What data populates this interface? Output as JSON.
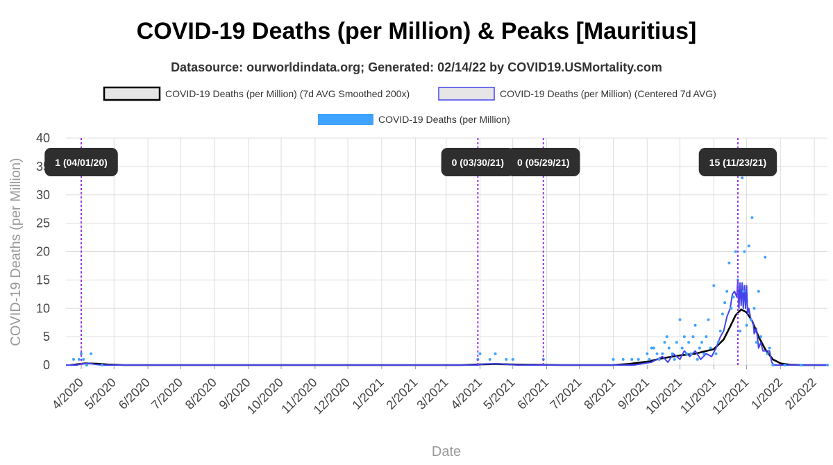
{
  "chart_data": {
    "type": "line",
    "title": "COVID-19 Deaths (per Million) & Peaks [Mauritius]",
    "subtitle": "Datasource: ourworldindata.org; Generated: 02/14/22 by COVID19.USMortality.com",
    "xlabel": "Date",
    "ylabel": "COVID-19 Deaths (per Million)",
    "ylim": [
      0,
      40
    ],
    "yticks": [
      0,
      5,
      10,
      15,
      20,
      25,
      30,
      35,
      40
    ],
    "xlim": [
      "2020-03-18",
      "2022-02-13"
    ],
    "xticks": [
      {
        "date": "2020-04-01",
        "label": "4/2020"
      },
      {
        "date": "2020-05-01",
        "label": "5/2020"
      },
      {
        "date": "2020-06-01",
        "label": "6/2020"
      },
      {
        "date": "2020-07-01",
        "label": "7/2020"
      },
      {
        "date": "2020-08-01",
        "label": "8/2020"
      },
      {
        "date": "2020-09-01",
        "label": "9/2020"
      },
      {
        "date": "2020-10-01",
        "label": "10/2020"
      },
      {
        "date": "2020-11-01",
        "label": "11/2020"
      },
      {
        "date": "2020-12-01",
        "label": "12/2020"
      },
      {
        "date": "2021-01-01",
        "label": "1/2021"
      },
      {
        "date": "2021-02-01",
        "label": "2/2021"
      },
      {
        "date": "2021-03-01",
        "label": "3/2021"
      },
      {
        "date": "2021-04-01",
        "label": "4/2021"
      },
      {
        "date": "2021-05-01",
        "label": "5/2021"
      },
      {
        "date": "2021-06-01",
        "label": "6/2021"
      },
      {
        "date": "2021-07-01",
        "label": "7/2021"
      },
      {
        "date": "2021-08-01",
        "label": "8/2021"
      },
      {
        "date": "2021-09-01",
        "label": "9/2021"
      },
      {
        "date": "2021-10-01",
        "label": "10/2021"
      },
      {
        "date": "2021-11-01",
        "label": "11/2021"
      },
      {
        "date": "2021-12-01",
        "label": "12/2021"
      },
      {
        "date": "2022-01-01",
        "label": "1/2022"
      },
      {
        "date": "2022-02-01",
        "label": "2/2022"
      }
    ],
    "grid": true,
    "legend_position": "top-center",
    "colors": {
      "smoothed": "#000000",
      "centered": "#4444ee",
      "daily": "#3fa3ff",
      "peak_line": "#9933ee",
      "peak_box": "#2e2e2e",
      "grid": "#dddddd"
    },
    "series": [
      {
        "name": "COVID-19 Deaths (per Million) (7d AVG Smoothed 200x)",
        "kind": "smoothed",
        "points": [
          [
            "2020-03-22",
            0
          ],
          [
            "2020-03-29",
            0.15
          ],
          [
            "2020-04-05",
            0.3
          ],
          [
            "2020-04-15",
            0.25
          ],
          [
            "2020-04-25",
            0.1
          ],
          [
            "2020-05-10",
            0
          ],
          [
            "2021-03-15",
            0
          ],
          [
            "2021-03-30",
            0.1
          ],
          [
            "2021-04-15",
            0.2
          ],
          [
            "2021-05-01",
            0.1
          ],
          [
            "2021-05-20",
            0.05
          ],
          [
            "2021-06-15",
            0
          ],
          [
            "2021-08-01",
            0
          ],
          [
            "2021-08-15",
            0.2
          ],
          [
            "2021-09-01",
            0.6
          ],
          [
            "2021-09-15",
            1.2
          ],
          [
            "2021-10-01",
            1.7
          ],
          [
            "2021-10-15",
            2.0
          ],
          [
            "2021-11-01",
            2.8
          ],
          [
            "2021-11-10",
            4.5
          ],
          [
            "2021-11-16",
            6.8
          ],
          [
            "2021-11-21",
            8.8
          ],
          [
            "2021-11-26",
            9.8
          ],
          [
            "2021-12-01",
            9.3
          ],
          [
            "2021-12-06",
            7.8
          ],
          [
            "2021-12-12",
            5.0
          ],
          [
            "2021-12-18",
            2.8
          ],
          [
            "2021-12-25",
            1.0
          ],
          [
            "2022-01-01",
            0.3
          ],
          [
            "2022-01-10",
            0.05
          ],
          [
            "2022-01-20",
            0
          ],
          [
            "2022-02-13",
            0
          ]
        ]
      },
      {
        "name": "COVID-19 Deaths (per Million) (Centered 7d AVG)",
        "kind": "centered",
        "points": [
          [
            "2020-03-18",
            0
          ],
          [
            "2020-03-28",
            0
          ],
          [
            "2020-04-01",
            0.2
          ],
          [
            "2020-04-08",
            0.3
          ],
          [
            "2020-04-15",
            0.1
          ],
          [
            "2020-04-20",
            0
          ],
          [
            "2021-03-30",
            0
          ],
          [
            "2021-04-05",
            0.2
          ],
          [
            "2021-04-20",
            0.2
          ],
          [
            "2021-05-05",
            0
          ],
          [
            "2021-08-20",
            0
          ],
          [
            "2021-09-05",
            0.5
          ],
          [
            "2021-09-15",
            1.5
          ],
          [
            "2021-09-20",
            0.5
          ],
          [
            "2021-09-25",
            2.0
          ],
          [
            "2021-10-01",
            1.0
          ],
          [
            "2021-10-05",
            2.5
          ],
          [
            "2021-10-10",
            1.5
          ],
          [
            "2021-10-15",
            2.5
          ],
          [
            "2021-10-20",
            1.0
          ],
          [
            "2021-10-25",
            2.0
          ],
          [
            "2021-10-30",
            1.5
          ],
          [
            "2021-11-03",
            3.0
          ],
          [
            "2021-11-07",
            5.0
          ],
          [
            "2021-11-10",
            6.0
          ],
          [
            "2021-11-13",
            8.5
          ],
          [
            "2021-11-16",
            10.0
          ],
          [
            "2021-11-18",
            12.5
          ],
          [
            "2021-11-20",
            13.0
          ],
          [
            "2021-11-22",
            12.0
          ],
          [
            "2021-11-23",
            15.0
          ],
          [
            "2021-11-24",
            10.0
          ],
          [
            "2021-11-25",
            14.5
          ],
          [
            "2021-11-26",
            10.5
          ],
          [
            "2021-11-27",
            14.5
          ],
          [
            "2021-11-28",
            10.0
          ],
          [
            "2021-11-29",
            14.0
          ],
          [
            "2021-11-30",
            10.0
          ],
          [
            "2021-12-01",
            14.0
          ],
          [
            "2021-12-02",
            9.0
          ],
          [
            "2021-12-03",
            10.0
          ],
          [
            "2021-12-05",
            8.0
          ],
          [
            "2021-12-07",
            7.5
          ],
          [
            "2021-12-08",
            5.5
          ],
          [
            "2021-12-10",
            6.5
          ],
          [
            "2021-12-12",
            3.0
          ],
          [
            "2021-12-14",
            4.0
          ],
          [
            "2021-12-16",
            2.5
          ],
          [
            "2021-12-18",
            2.5
          ],
          [
            "2021-12-22",
            2.5
          ],
          [
            "2021-12-24",
            0.5
          ],
          [
            "2021-12-26",
            0
          ],
          [
            "2022-02-13",
            0
          ]
        ]
      },
      {
        "name": "COVID-19 Deaths (per Million)",
        "kind": "daily",
        "points": [
          [
            "2020-03-25",
            1
          ],
          [
            "2020-03-30",
            1
          ],
          [
            "2020-04-01",
            2
          ],
          [
            "2020-04-03",
            1
          ],
          [
            "2020-04-10",
            2
          ],
          [
            "2020-04-06",
            0
          ],
          [
            "2020-04-20",
            0
          ],
          [
            "2021-03-30",
            1
          ],
          [
            "2021-04-01",
            2
          ],
          [
            "2021-04-10",
            1
          ],
          [
            "2021-04-15",
            2
          ],
          [
            "2021-04-25",
            1
          ],
          [
            "2021-05-01",
            1
          ],
          [
            "2021-05-29",
            1
          ],
          [
            "2021-08-01",
            1
          ],
          [
            "2021-08-10",
            1
          ],
          [
            "2021-08-18",
            1
          ],
          [
            "2021-08-24",
            1
          ],
          [
            "2021-09-01",
            2
          ],
          [
            "2021-09-03",
            1
          ],
          [
            "2021-09-05",
            3
          ],
          [
            "2021-09-07",
            3
          ],
          [
            "2021-09-10",
            2
          ],
          [
            "2021-09-12",
            1
          ],
          [
            "2021-09-15",
            2
          ],
          [
            "2021-09-17",
            4
          ],
          [
            "2021-09-19",
            5
          ],
          [
            "2021-09-21",
            3
          ],
          [
            "2021-09-24",
            2
          ],
          [
            "2021-09-26",
            1
          ],
          [
            "2021-09-28",
            4
          ],
          [
            "2021-10-01",
            8
          ],
          [
            "2021-10-03",
            3
          ],
          [
            "2021-10-05",
            5
          ],
          [
            "2021-10-07",
            2
          ],
          [
            "2021-10-09",
            4
          ],
          [
            "2021-10-11",
            2
          ],
          [
            "2021-10-13",
            5
          ],
          [
            "2021-10-15",
            7
          ],
          [
            "2021-10-17",
            1
          ],
          [
            "2021-10-19",
            3
          ],
          [
            "2021-10-21",
            4
          ],
          [
            "2021-10-23",
            2
          ],
          [
            "2021-10-25",
            5
          ],
          [
            "2021-10-27",
            8
          ],
          [
            "2021-10-29",
            3
          ],
          [
            "2021-11-01",
            14
          ],
          [
            "2021-11-03",
            2
          ],
          [
            "2021-11-05",
            4
          ],
          [
            "2021-11-07",
            6
          ],
          [
            "2021-11-09",
            9
          ],
          [
            "2021-11-11",
            11
          ],
          [
            "2021-11-13",
            13
          ],
          [
            "2021-11-15",
            18
          ],
          [
            "2021-11-17",
            10
          ],
          [
            "2021-11-19",
            12
          ],
          [
            "2021-11-21",
            20
          ],
          [
            "2021-11-23",
            15
          ],
          [
            "2021-11-25",
            6
          ],
          [
            "2021-11-27",
            33
          ],
          [
            "2021-11-28",
            13
          ],
          [
            "2021-11-29",
            20
          ],
          [
            "2021-12-01",
            7
          ],
          [
            "2021-12-03",
            21
          ],
          [
            "2021-12-05",
            8
          ],
          [
            "2021-12-06",
            26
          ],
          [
            "2021-12-08",
            10
          ],
          [
            "2021-12-10",
            4
          ],
          [
            "2021-12-12",
            13
          ],
          [
            "2021-12-14",
            5
          ],
          [
            "2021-12-18",
            19
          ],
          [
            "2021-12-20",
            2
          ],
          [
            "2021-12-22",
            3
          ],
          [
            "2021-12-25",
            0
          ],
          [
            "2022-01-05",
            0
          ],
          [
            "2022-01-20",
            0
          ],
          [
            "2022-02-13",
            0
          ]
        ]
      }
    ],
    "peaks": [
      {
        "date": "2020-04-01",
        "label": "1 (04/01/20)"
      },
      {
        "date": "2021-03-30",
        "label": "0 (03/30/21)"
      },
      {
        "date": "2021-05-29",
        "label": "0 (05/29/21)"
      },
      {
        "date": "2021-11-23",
        "label": "15 (11/23/21)"
      }
    ]
  }
}
